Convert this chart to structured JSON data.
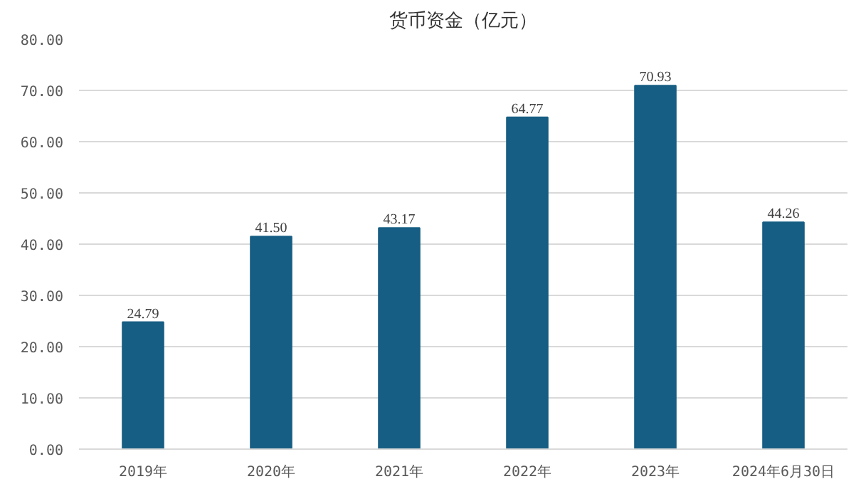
{
  "chart_data": {
    "type": "bar",
    "title": "货币资金（亿元）",
    "categories": [
      "2019年",
      "2020年",
      "2021年",
      "2022年",
      "2023年",
      "2024年6月30日"
    ],
    "values": [
      24.79,
      41.5,
      43.17,
      64.77,
      70.93,
      44.26
    ],
    "value_labels": [
      "24.79",
      "41.50",
      "43.17",
      "64.77",
      "70.93",
      "44.26"
    ],
    "color": "#165e83",
    "ylim": [
      0,
      80
    ],
    "yticks": [
      {
        "value": 0,
        "label": "0.00"
      },
      {
        "value": 10,
        "label": "10.00"
      },
      {
        "value": 20,
        "label": "20.00"
      },
      {
        "value": 30,
        "label": "30.00"
      },
      {
        "value": 40,
        "label": "40.00"
      },
      {
        "value": 50,
        "label": "50.00"
      },
      {
        "value": 60,
        "label": "60.00"
      },
      {
        "value": 70,
        "label": "70.00"
      },
      {
        "value": 80,
        "label": "80.00"
      }
    ],
    "grid": "y"
  }
}
